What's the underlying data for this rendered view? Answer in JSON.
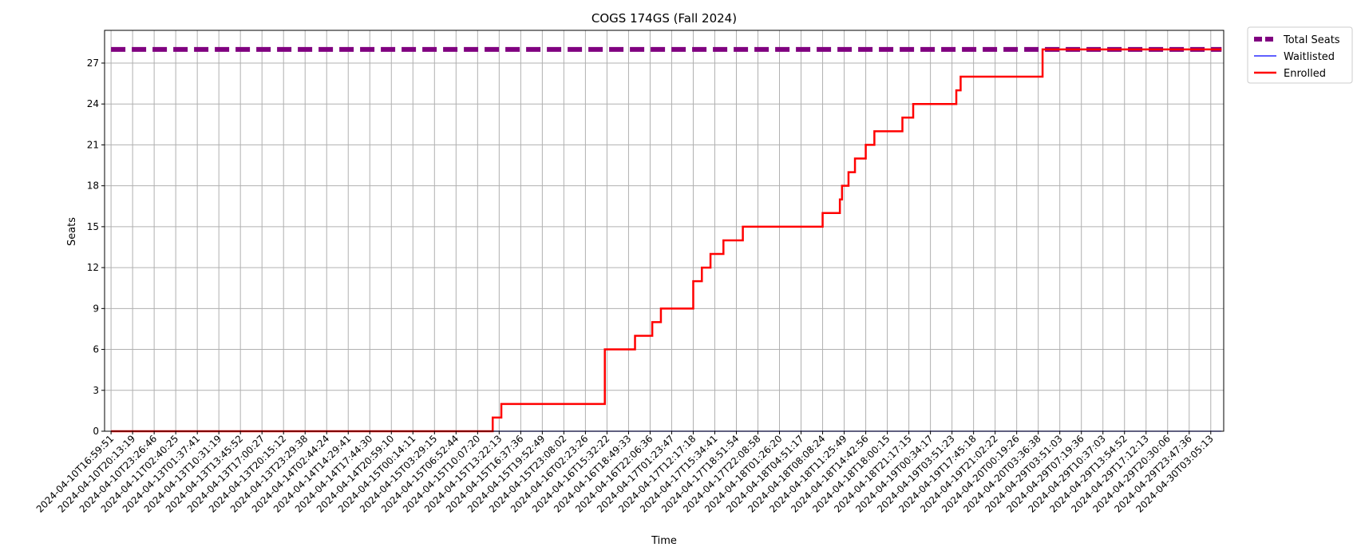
{
  "chart_data": {
    "type": "line",
    "title": "COGS 174GS (Fall 2024)",
    "xlabel": "Time",
    "ylabel": "Seats",
    "ylim": [
      0,
      29.4
    ],
    "yticks": [
      0,
      3,
      6,
      9,
      12,
      15,
      18,
      21,
      24,
      27
    ],
    "grid": true,
    "legend_position": "outside-top-right",
    "x_tick_labels": [
      "2024-04-10T16:59:51",
      "2024-04-10T20:13:19",
      "2024-04-10T23:26:46",
      "2024-04-11T02:40:25",
      "2024-04-13T01:37:41",
      "2024-04-13T10:31:19",
      "2024-04-13T13:45:52",
      "2024-04-13T17:00:27",
      "2024-04-13T20:15:12",
      "2024-04-13T23:29:38",
      "2024-04-14T02:44:24",
      "2024-04-14T14:29:41",
      "2024-04-14T17:44:30",
      "2024-04-14T20:59:10",
      "2024-04-15T00:14:11",
      "2024-04-15T03:29:15",
      "2024-04-15T06:52:44",
      "2024-04-15T10:07:20",
      "2024-04-15T13:22:13",
      "2024-04-15T16:37:36",
      "2024-04-15T19:52:49",
      "2024-04-15T23:08:02",
      "2024-04-16T02:23:26",
      "2024-04-16T15:32:22",
      "2024-04-16T18:49:33",
      "2024-04-16T22:06:36",
      "2024-04-17T01:23:47",
      "2024-04-17T12:17:18",
      "2024-04-17T15:34:41",
      "2024-04-17T18:51:54",
      "2024-04-17T22:08:58",
      "2024-04-18T01:26:20",
      "2024-04-18T04:51:17",
      "2024-04-18T08:08:24",
      "2024-04-18T11:25:49",
      "2024-04-18T14:42:56",
      "2024-04-18T18:00:15",
      "2024-04-18T21:17:15",
      "2024-04-19T00:34:17",
      "2024-04-19T03:51:23",
      "2024-04-19T17:45:18",
      "2024-04-19T21:02:22",
      "2024-04-20T00:19:26",
      "2024-04-20T03:36:38",
      "2024-04-29T03:51:03",
      "2024-04-29T07:19:36",
      "2024-04-29T10:37:03",
      "2024-04-29T13:54:52",
      "2024-04-29T17:12:13",
      "2024-04-29T20:30:06",
      "2024-04-29T23:47:36",
      "2024-04-30T03:05:13"
    ],
    "series": [
      {
        "name": "Total Seats",
        "color": "#800080",
        "style": "dashed",
        "points": [
          [
            0,
            28
          ],
          [
            51.5,
            28
          ]
        ]
      },
      {
        "name": "Waitlisted",
        "color": "#0000ff",
        "style": "solid",
        "points": [
          [
            0,
            0
          ],
          [
            51.5,
            0
          ]
        ]
      },
      {
        "name": "Enrolled",
        "color": "#ff0000",
        "style": "step",
        "points": [
          [
            0,
            0
          ],
          [
            17.7,
            0
          ],
          [
            17.7,
            1
          ],
          [
            18.1,
            1
          ],
          [
            18.1,
            2
          ],
          [
            22.9,
            2
          ],
          [
            22.9,
            6
          ],
          [
            24.3,
            6
          ],
          [
            24.3,
            7
          ],
          [
            25.1,
            7
          ],
          [
            25.1,
            8
          ],
          [
            25.5,
            8
          ],
          [
            25.5,
            9
          ],
          [
            27.0,
            9
          ],
          [
            27.0,
            11
          ],
          [
            27.4,
            11
          ],
          [
            27.4,
            12
          ],
          [
            27.8,
            12
          ],
          [
            27.8,
            13
          ],
          [
            28.4,
            13
          ],
          [
            28.4,
            14
          ],
          [
            29.3,
            14
          ],
          [
            29.3,
            15
          ],
          [
            33.0,
            15
          ],
          [
            33.0,
            16
          ],
          [
            33.8,
            16
          ],
          [
            33.8,
            17
          ],
          [
            33.9,
            17
          ],
          [
            33.9,
            18
          ],
          [
            34.2,
            18
          ],
          [
            34.2,
            19
          ],
          [
            34.5,
            19
          ],
          [
            34.5,
            20
          ],
          [
            35.0,
            20
          ],
          [
            35.0,
            21
          ],
          [
            35.4,
            21
          ],
          [
            35.4,
            22
          ],
          [
            36.7,
            22
          ],
          [
            36.7,
            23
          ],
          [
            37.2,
            23
          ],
          [
            37.2,
            24
          ],
          [
            39.2,
            24
          ],
          [
            39.2,
            25
          ],
          [
            39.4,
            25
          ],
          [
            39.4,
            26
          ],
          [
            43.2,
            26
          ],
          [
            43.2,
            28
          ],
          [
            51.5,
            28
          ]
        ]
      }
    ]
  }
}
